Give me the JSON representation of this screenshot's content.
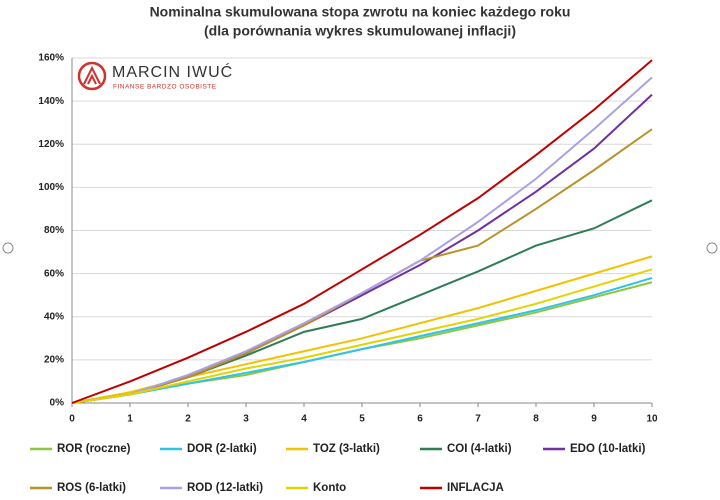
{
  "chart_data": {
    "type": "line",
    "title": "Nominalna skumulowana stopa zwrotu na koniec każdego roku",
    "subtitle": "(dla porównania wykres skumulowanej inflacji)",
    "logo_text": [
      "MARCIN IWUĆ",
      "FINANSE BARDZO OSOBISTE"
    ],
    "x": [
      0,
      1,
      2,
      3,
      4,
      5,
      6,
      7,
      8,
      9,
      10
    ],
    "xlim": [
      0,
      10
    ],
    "xticks": [
      0,
      1,
      2,
      3,
      4,
      5,
      6,
      7,
      8,
      9,
      10
    ],
    "ylim": [
      0,
      160
    ],
    "yticks": [
      {
        "value": 0,
        "label": "0%"
      },
      {
        "value": 20,
        "label": "20%"
      },
      {
        "value": 40,
        "label": "40%"
      },
      {
        "value": 60,
        "label": "60%"
      },
      {
        "value": 80,
        "label": "80%"
      },
      {
        "value": 100,
        "label": "100%"
      },
      {
        "value": 120,
        "label": "120%"
      },
      {
        "value": 140,
        "label": "140%"
      },
      {
        "value": 160,
        "label": "160%"
      }
    ],
    "grid": true,
    "legend": "bottom",
    "series": [
      {
        "name": "ROR (roczne)",
        "color": "#8dc63f",
        "values": [
          0,
          4,
          9,
          13,
          19,
          25,
          30,
          36,
          42,
          49,
          56
        ]
      },
      {
        "name": "DOR (2-latki)",
        "color": "#2ec4e8",
        "values": [
          0,
          4,
          9,
          14,
          19,
          25,
          31,
          37,
          43,
          50,
          58
        ]
      },
      {
        "name": "TOZ (3-latki)",
        "color": "#f2c200",
        "values": [
          0,
          5,
          12,
          18,
          24,
          30,
          37,
          44,
          52,
          60,
          68
        ]
      },
      {
        "name": "COI (4-latki)",
        "color": "#2e7d57",
        "values": [
          0,
          4,
          12,
          22,
          33,
          39,
          50,
          61,
          73,
          81,
          94
        ]
      },
      {
        "name": "EDO (10-latki)",
        "color": "#7030a0",
        "values": [
          0,
          4,
          12,
          23,
          36,
          50,
          64,
          80,
          98,
          118,
          143
        ]
      },
      {
        "name": "ROS (6-latki)",
        "color": "#b8922a",
        "values": [
          0,
          4,
          12,
          23,
          36,
          51,
          66,
          73,
          90,
          108,
          127
        ]
      },
      {
        "name": "ROD (12-latki)",
        "color": "#a9a0e6",
        "values": [
          0,
          4,
          13,
          24,
          37,
          51,
          66,
          84,
          104,
          127,
          151
        ]
      },
      {
        "name": "Konto",
        "color": "#e3d400",
        "values": [
          0,
          4,
          10,
          16,
          21,
          27,
          33,
          39,
          46,
          54,
          62
        ]
      },
      {
        "name": "INFLACJA",
        "color": "#c00000",
        "values": [
          0,
          10,
          21,
          33,
          46,
          62,
          78,
          95,
          115,
          136,
          159
        ]
      }
    ]
  }
}
